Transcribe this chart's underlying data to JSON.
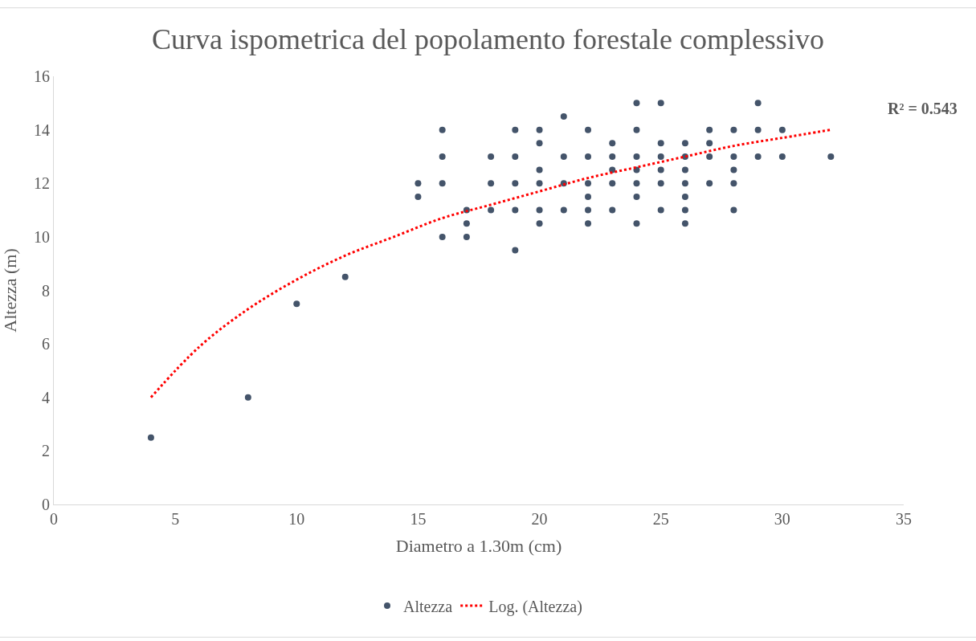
{
  "chart_data": {
    "type": "scatter",
    "title": "Curva ispometrica del popolamento forestale complessivo",
    "xlabel": "Diametro a 1.30m (cm)",
    "ylabel": "Altezza (m)",
    "xlim": [
      0,
      35
    ],
    "xticks": [
      0,
      5,
      10,
      15,
      20,
      25,
      30,
      35
    ],
    "ylim": [
      0,
      16
    ],
    "yticks": [
      0,
      2,
      4,
      6,
      8,
      10,
      12,
      14,
      16
    ],
    "grid": false,
    "legend": "bottom",
    "marker": "circle",
    "annotations": [
      "R² = 0.543"
    ],
    "series": [
      {
        "name": "Altezza",
        "color": "#44546a",
        "x": [
          4,
          8,
          10,
          12,
          15,
          15,
          16,
          16,
          16,
          16,
          17,
          17,
          17,
          18,
          18,
          18,
          19,
          19,
          19,
          19,
          19,
          20,
          20,
          20,
          20,
          20,
          20,
          21,
          21,
          21,
          21,
          22,
          22,
          22,
          22,
          22,
          22,
          23,
          23,
          23,
          23,
          23,
          24,
          24,
          24,
          24,
          24,
          24,
          24,
          25,
          25,
          25,
          25,
          25,
          25,
          26,
          26,
          26,
          26,
          26,
          26,
          26,
          27,
          27,
          27,
          27,
          28,
          28,
          28,
          28,
          28,
          29,
          29,
          29,
          30,
          30,
          32
        ],
        "values": [
          2.5,
          4,
          7.5,
          8.5,
          12,
          11.5,
          14,
          13,
          12,
          10,
          11,
          10.5,
          10,
          13,
          12,
          11,
          14,
          13,
          12,
          11,
          9.5,
          14,
          13.5,
          12.5,
          12,
          11,
          10.5,
          14.5,
          13,
          12,
          11,
          14,
          13,
          12,
          11.5,
          11,
          10.5,
          13.5,
          13,
          12.5,
          12,
          11,
          15,
          14,
          13,
          12.5,
          12,
          11.5,
          10.5,
          15,
          13.5,
          13,
          12.5,
          12,
          11,
          13.5,
          13,
          12.5,
          12,
          11.5,
          11,
          10.5,
          14,
          13.5,
          13,
          12,
          14,
          13,
          12.5,
          12,
          11,
          15,
          14,
          13,
          14,
          13,
          13
        ]
      },
      {
        "name": "Log. (Altezza)",
        "type": "line",
        "color": "#ff0000",
        "line_style": "dotted",
        "marker": "none",
        "x": [
          4,
          6,
          8,
          10,
          12,
          14,
          16,
          18,
          20,
          22,
          24,
          26,
          28,
          30,
          32
        ],
        "values": [
          4.0,
          5.9,
          7.3,
          8.4,
          9.3,
          10.0,
          10.7,
          11.2,
          11.7,
          12.2,
          12.6,
          13.0,
          13.4,
          13.7,
          14.0
        ]
      }
    ]
  }
}
